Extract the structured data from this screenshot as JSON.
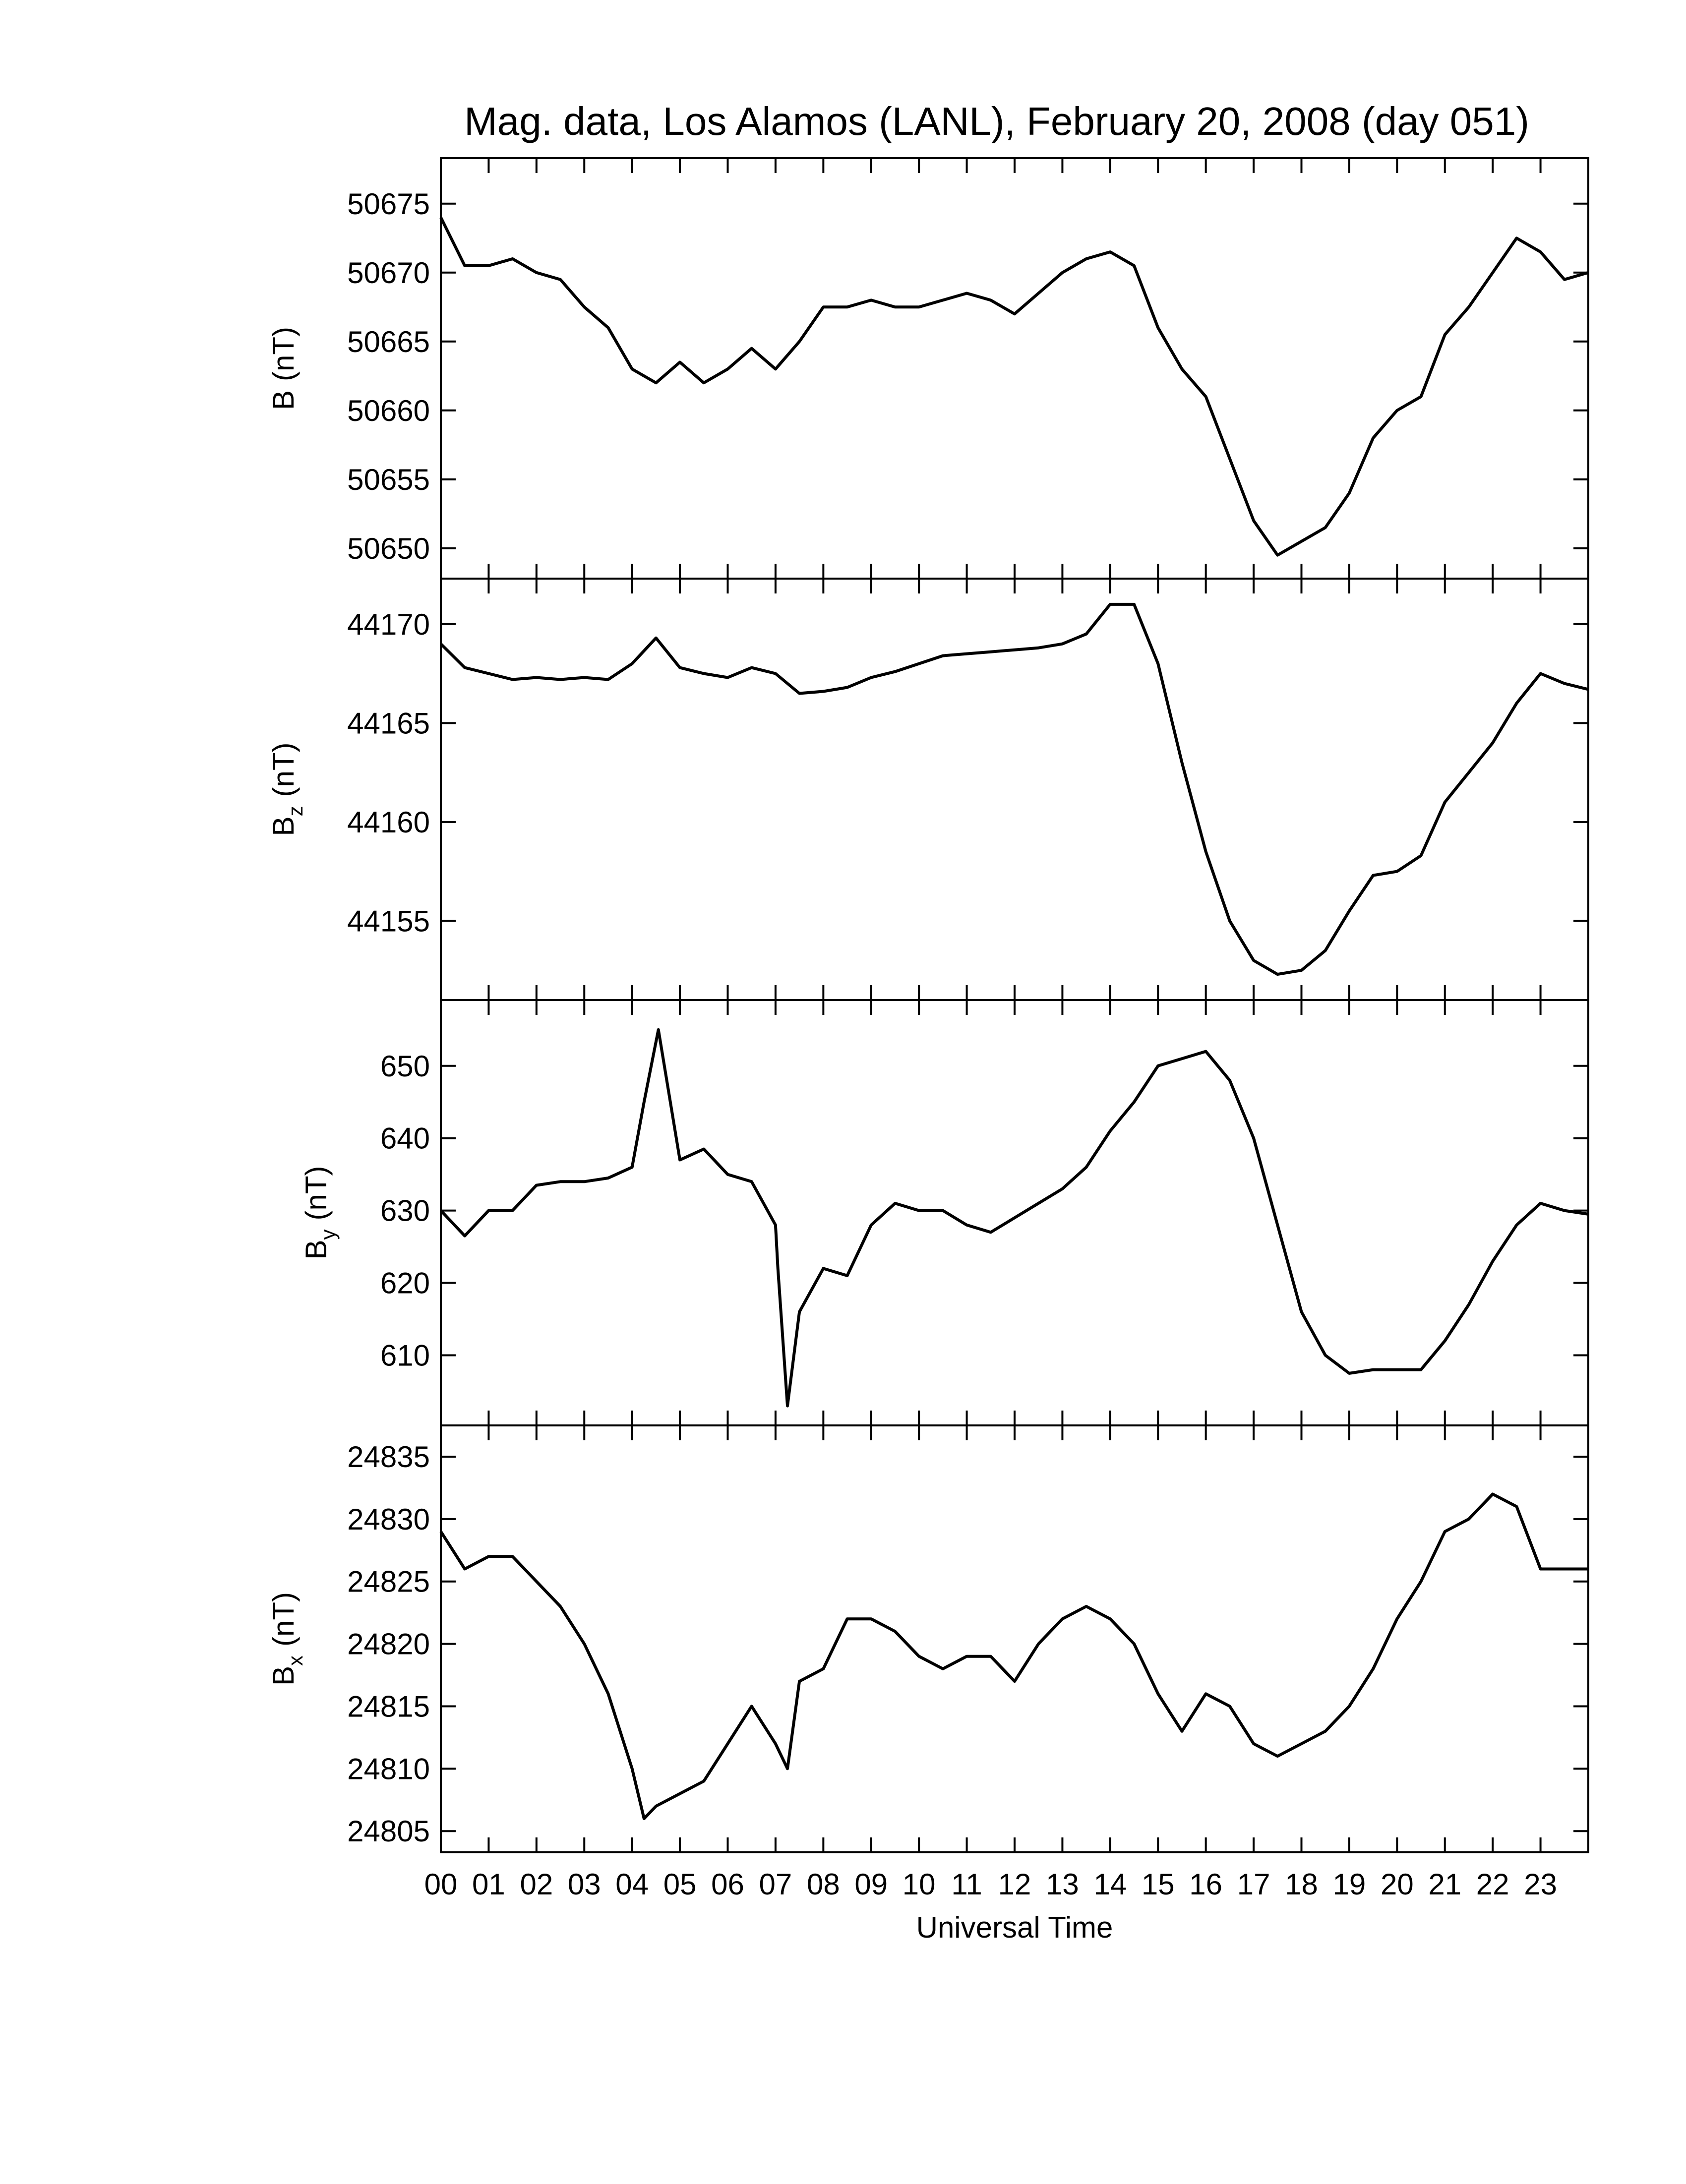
{
  "chart_data": [
    {
      "type": "line",
      "title": "Mag. data, Los Alamos (LANL), February 20, 2008 (day 051)",
      "ylabel": {
        "main": "B",
        "unit": "(nT)"
      },
      "color": "#000000",
      "x": [
        0,
        0.5,
        1,
        1.5,
        2,
        2.5,
        3,
        3.5,
        4,
        4.5,
        5,
        5.5,
        6,
        6.5,
        7,
        7.5,
        8,
        8.5,
        9,
        9.5,
        10,
        10.5,
        11,
        11.5,
        12,
        12.5,
        13,
        13.5,
        14,
        14.5,
        15,
        15.5,
        16,
        16.5,
        17,
        17.5,
        18,
        18.5,
        19,
        19.5,
        20,
        20.5,
        21,
        21.5,
        22,
        22.5,
        23,
        23.5,
        24
      ],
      "values": [
        50674,
        50670.5,
        50670.5,
        50671,
        50670,
        50669.5,
        50667.5,
        50666,
        50663,
        50662,
        50663.5,
        50662,
        50663,
        50664.5,
        50663,
        50665,
        50667.5,
        50667.5,
        50668,
        50667.5,
        50667.5,
        50668,
        50668.5,
        50668,
        50667,
        50668.5,
        50670,
        50671,
        50671.5,
        50670.5,
        50666,
        50663,
        50661,
        50656.5,
        50652,
        50649.5,
        50650.5,
        50651.5,
        50654,
        50658,
        50660,
        50661,
        50665.5,
        50667.5,
        50670,
        50672.5,
        50671.5,
        50669.5,
        50670
      ],
      "xlim": [
        0,
        24
      ],
      "xticks": [
        0,
        1,
        2,
        3,
        4,
        5,
        6,
        7,
        8,
        9,
        10,
        11,
        12,
        13,
        14,
        15,
        16,
        17,
        18,
        19,
        20,
        21,
        22,
        23
      ],
      "ylim": [
        50647.8,
        50678.3
      ],
      "yticks": [
        50650,
        50655,
        50660,
        50665,
        50670,
        50675
      ]
    },
    {
      "type": "line",
      "ylabel": {
        "main": "B",
        "sub": "z",
        "unit": "(nT)"
      },
      "color": "#000000",
      "x": [
        0,
        0.5,
        1,
        1.5,
        2,
        2.5,
        3,
        3.5,
        4,
        4.5,
        5,
        5.5,
        6,
        6.5,
        7,
        7.5,
        8,
        8.5,
        9,
        9.5,
        10,
        10.5,
        11,
        11.5,
        12,
        12.5,
        13,
        13.5,
        14,
        14.5,
        15,
        15.5,
        16,
        16.5,
        17,
        17.5,
        18,
        18.5,
        19,
        19.5,
        20,
        20.5,
        21,
        21.5,
        22,
        22.5,
        23,
        23.5,
        24
      ],
      "values": [
        44169,
        44167.8,
        44167.5,
        44167.2,
        44167.3,
        44167.2,
        44167.3,
        44167.2,
        44168,
        44169.3,
        44167.8,
        44167.5,
        44167.3,
        44167.8,
        44167.5,
        44166.5,
        44166.6,
        44166.8,
        44167.3,
        44167.6,
        44168,
        44168.4,
        44168.5,
        44168.6,
        44168.7,
        44168.8,
        44169,
        44169.5,
        44171,
        44171,
        44168,
        44163,
        44158.5,
        44155,
        44153,
        44152.3,
        44152.5,
        44153.5,
        44155.5,
        44157.3,
        44157.5,
        44158.3,
        44161,
        44162.5,
        44164,
        44166,
        44167.5,
        44167,
        44166.7
      ],
      "xlim": [
        0,
        24
      ],
      "xticks": [
        0,
        1,
        2,
        3,
        4,
        5,
        6,
        7,
        8,
        9,
        10,
        11,
        12,
        13,
        14,
        15,
        16,
        17,
        18,
        19,
        20,
        21,
        22,
        23
      ],
      "ylim": [
        44151.0,
        44172.3
      ],
      "yticks": [
        44155,
        44160,
        44165,
        44170
      ]
    },
    {
      "type": "line",
      "ylabel": {
        "main": "B",
        "sub": "y",
        "unit": "(nT)"
      },
      "color": "#000000",
      "x": [
        0,
        0.5,
        1,
        1.5,
        2,
        2.5,
        3,
        3.5,
        4,
        4.25,
        4.55,
        4.75,
        5,
        5.5,
        6,
        6.5,
        7,
        7.05,
        7.25,
        7.5,
        8,
        8.5,
        9,
        9.5,
        10,
        10.5,
        11,
        11.5,
        12,
        12.5,
        13,
        13.5,
        14,
        14.5,
        15,
        15.5,
        16,
        16.5,
        17,
        17.5,
        18,
        18.5,
        19,
        19.5,
        20,
        20.5,
        21,
        21.5,
        22,
        22.5,
        23,
        23.5,
        24
      ],
      "values": [
        630,
        626.5,
        630,
        630,
        633.5,
        634,
        634,
        634.5,
        636,
        645,
        655,
        647,
        637,
        638.5,
        635,
        634,
        628,
        622,
        603,
        616,
        622,
        621,
        628,
        631,
        630,
        630,
        628,
        627,
        629,
        631,
        633,
        636,
        641,
        645,
        650,
        651,
        652,
        648,
        640,
        628,
        616,
        610,
        607.5,
        608,
        608,
        608,
        612,
        617,
        623,
        628,
        631,
        630,
        629.5
      ],
      "xlim": [
        0,
        24
      ],
      "xticks": [
        0,
        1,
        2,
        3,
        4,
        5,
        6,
        7,
        8,
        9,
        10,
        11,
        12,
        13,
        14,
        15,
        16,
        17,
        18,
        19,
        20,
        21,
        22,
        23
      ],
      "ylim": [
        600.3,
        659.1
      ],
      "yticks": [
        610,
        620,
        630,
        640,
        650
      ]
    },
    {
      "type": "line",
      "ylabel": {
        "main": "B",
        "sub": "x",
        "unit": "(nT)"
      },
      "xlabel": "Universal Time",
      "color": "#000000",
      "x": [
        0,
        0.5,
        1,
        1.5,
        2,
        2.5,
        3,
        3.5,
        4,
        4.25,
        4.5,
        5,
        5.5,
        6,
        6.5,
        7,
        7.25,
        7.5,
        8,
        8.5,
        9,
        9.5,
        10,
        10.5,
        11,
        11.5,
        12,
        12.5,
        13,
        13.5,
        14,
        14.5,
        15,
        15.5,
        16,
        16.5,
        17,
        17.5,
        18,
        18.5,
        19,
        19.5,
        20,
        20.5,
        21,
        21.5,
        22,
        22.5,
        23,
        23.5,
        24
      ],
      "values": [
        24829,
        24826,
        24827,
        24827,
        24825,
        24823,
        24820,
        24816,
        24810,
        24806,
        24807,
        24808,
        24809,
        24812,
        24815,
        24812,
        24810,
        24817,
        24818,
        24822,
        24822,
        24821,
        24819,
        24818,
        24819,
        24819,
        24817,
        24820,
        24822,
        24823,
        24822,
        24820,
        24816,
        24813,
        24816,
        24815,
        24812,
        24811,
        24812,
        24813,
        24815,
        24818,
        24822,
        24825,
        24829,
        24830,
        24832,
        24831,
        24826,
        24826,
        24826
      ],
      "xlim": [
        0,
        24
      ],
      "xticks": [
        {
          "value": 0,
          "label": "00"
        },
        {
          "value": 1,
          "label": "01"
        },
        {
          "value": 2,
          "label": "02"
        },
        {
          "value": 3,
          "label": "03"
        },
        {
          "value": 4,
          "label": "04"
        },
        {
          "value": 5,
          "label": "05"
        },
        {
          "value": 6,
          "label": "06"
        },
        {
          "value": 7,
          "label": "07"
        },
        {
          "value": 8,
          "label": "08"
        },
        {
          "value": 9,
          "label": "09"
        },
        {
          "value": 10,
          "label": "10"
        },
        {
          "value": 11,
          "label": "11"
        },
        {
          "value": 12,
          "label": "12"
        },
        {
          "value": 13,
          "label": "13"
        },
        {
          "value": 14,
          "label": "14"
        },
        {
          "value": 15,
          "label": "15"
        },
        {
          "value": 16,
          "label": "16"
        },
        {
          "value": 17,
          "label": "17"
        },
        {
          "value": 18,
          "label": "18"
        },
        {
          "value": 19,
          "label": "19"
        },
        {
          "value": 20,
          "label": "20"
        },
        {
          "value": 21,
          "label": "21"
        },
        {
          "value": 22,
          "label": "22"
        },
        {
          "value": 23,
          "label": "23"
        }
      ],
      "ylim": [
        24803.3,
        24837.5
      ],
      "yticks": [
        24805,
        24810,
        24815,
        24820,
        24825,
        24830,
        24835
      ]
    }
  ]
}
